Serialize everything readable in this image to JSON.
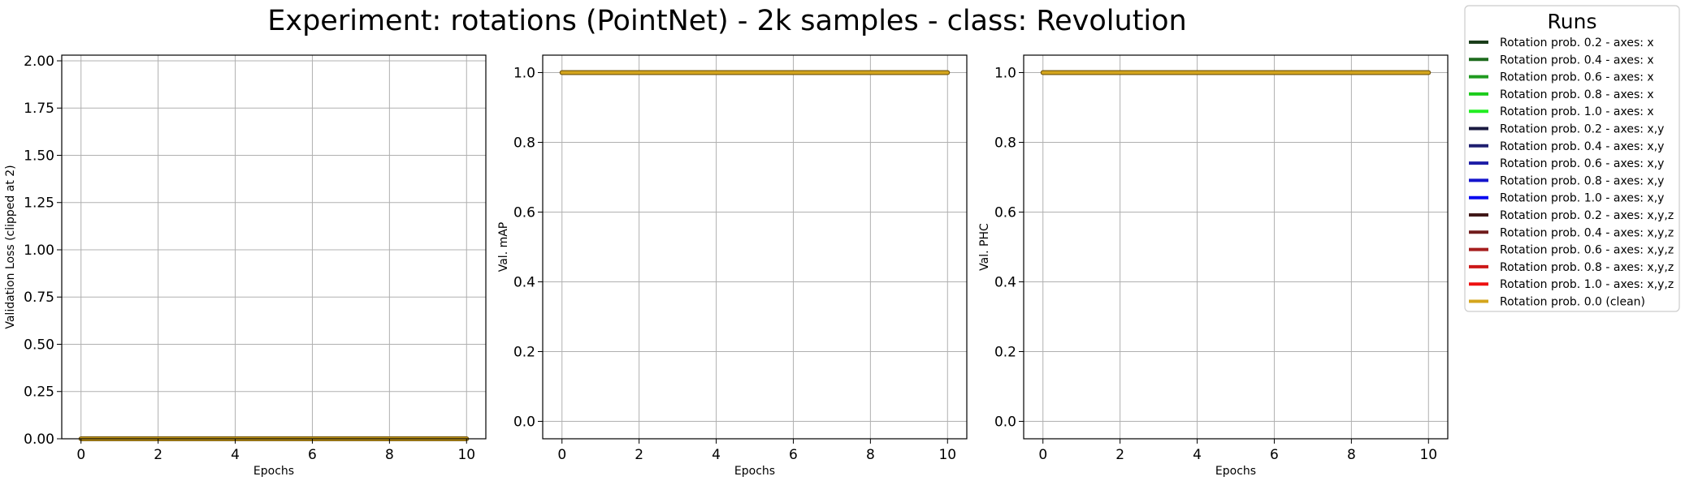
{
  "suptitle": "Experiment: rotations (PointNet) - 2k samples - class: Revolution",
  "legend": {
    "title": "Runs",
    "placement": "outside-right-top",
    "entries": [
      {
        "label": "Rotation prob. 0.2 - axes: x",
        "color": "#1a3d1a"
      },
      {
        "label": "Rotation prob. 0.4 - axes: x",
        "color": "#1e6b1e"
      },
      {
        "label": "Rotation prob. 0.6 - axes: x",
        "color": "#1f9a1f"
      },
      {
        "label": "Rotation prob. 0.8 - axes: x",
        "color": "#1ccc1c"
      },
      {
        "label": "Rotation prob. 1.0 - axes: x",
        "color": "#22ee22"
      },
      {
        "label": "Rotation prob. 0.2 - axes: x,y",
        "color": "#1a1a40"
      },
      {
        "label": "Rotation prob. 0.4 - axes: x,y",
        "color": "#1f1f70"
      },
      {
        "label": "Rotation prob. 0.6 - axes: x,y",
        "color": "#1c1ca6"
      },
      {
        "label": "Rotation prob. 0.8 - axes: x,y",
        "color": "#1414cc"
      },
      {
        "label": "Rotation prob. 1.0 - axes: x,y",
        "color": "#0a0af0"
      },
      {
        "label": "Rotation prob. 0.2 - axes: x,y,z",
        "color": "#401818"
      },
      {
        "label": "Rotation prob. 0.4 - axes: x,y,z",
        "color": "#701c1c"
      },
      {
        "label": "Rotation prob. 0.6 - axes: x,y,z",
        "color": "#a61e1e"
      },
      {
        "label": "Rotation prob. 0.8 - axes: x,y,z",
        "color": "#cc1818"
      },
      {
        "label": "Rotation prob. 1.0 - axes: x,y,z",
        "color": "#ee1010"
      },
      {
        "label": "Rotation prob. 0.0 (clean)",
        "color": "#d4a51c"
      }
    ]
  },
  "chart_data": [
    {
      "type": "line",
      "title": "",
      "xlabel": "Epochs",
      "ylabel": "Validation Loss (clipped at 2)",
      "xlim": [
        -0.5,
        10.5
      ],
      "ylim": [
        0,
        2.03
      ],
      "xticks": [
        0,
        2,
        4,
        6,
        8,
        10
      ],
      "xtick_labels": [
        "0",
        "2",
        "4",
        "6",
        "8",
        "10"
      ],
      "yticks": [
        0,
        0.25,
        0.5,
        0.75,
        1.0,
        1.25,
        1.5,
        1.75,
        2.0
      ],
      "ytick_labels": [
        "0.00",
        "0.25",
        "0.50",
        "0.75",
        "1.00",
        "1.25",
        "1.50",
        "1.75",
        "2.00"
      ],
      "grid": true,
      "x": [
        0,
        1,
        2,
        3,
        4,
        5,
        6,
        7,
        8,
        9,
        10
      ],
      "series": [
        {
          "name": "Rotation prob. 0.0 (clean)",
          "values": [
            0,
            0,
            0,
            0,
            0,
            0,
            0,
            0,
            0,
            0,
            0
          ]
        }
      ]
    },
    {
      "type": "line",
      "title": "",
      "xlabel": "Epochs",
      "ylabel": "Val. mAP",
      "xlim": [
        -0.5,
        10.5
      ],
      "ylim": [
        -0.05,
        1.05
      ],
      "xticks": [
        0,
        2,
        4,
        6,
        8,
        10
      ],
      "xtick_labels": [
        "0",
        "2",
        "4",
        "6",
        "8",
        "10"
      ],
      "yticks": [
        0,
        0.2,
        0.4,
        0.6,
        0.8,
        1.0
      ],
      "ytick_labels": [
        "0.0",
        "0.2",
        "0.4",
        "0.6",
        "0.8",
        "1.0"
      ],
      "grid": true,
      "x": [
        0,
        1,
        2,
        3,
        4,
        5,
        6,
        7,
        8,
        9,
        10
      ],
      "series": [
        {
          "name": "Rotation prob. 0.0 (clean)",
          "values": [
            1,
            1,
            1,
            1,
            1,
            1,
            1,
            1,
            1,
            1,
            1
          ]
        }
      ]
    },
    {
      "type": "line",
      "title": "",
      "xlabel": "Epochs",
      "ylabel": "Val. PHC",
      "xlim": [
        -0.5,
        10.5
      ],
      "ylim": [
        -0.05,
        1.05
      ],
      "xticks": [
        0,
        2,
        4,
        6,
        8,
        10
      ],
      "xtick_labels": [
        "0",
        "2",
        "4",
        "6",
        "8",
        "10"
      ],
      "yticks": [
        0,
        0.2,
        0.4,
        0.6,
        0.8,
        1.0
      ],
      "ytick_labels": [
        "0.0",
        "0.2",
        "0.4",
        "0.6",
        "0.8",
        "1.0"
      ],
      "grid": true,
      "x": [
        0,
        1,
        2,
        3,
        4,
        5,
        6,
        7,
        8,
        9,
        10
      ],
      "series": [
        {
          "name": "Rotation prob. 0.0 (clean)",
          "values": [
            1,
            1,
            1,
            1,
            1,
            1,
            1,
            1,
            1,
            1,
            1
          ]
        }
      ]
    }
  ]
}
